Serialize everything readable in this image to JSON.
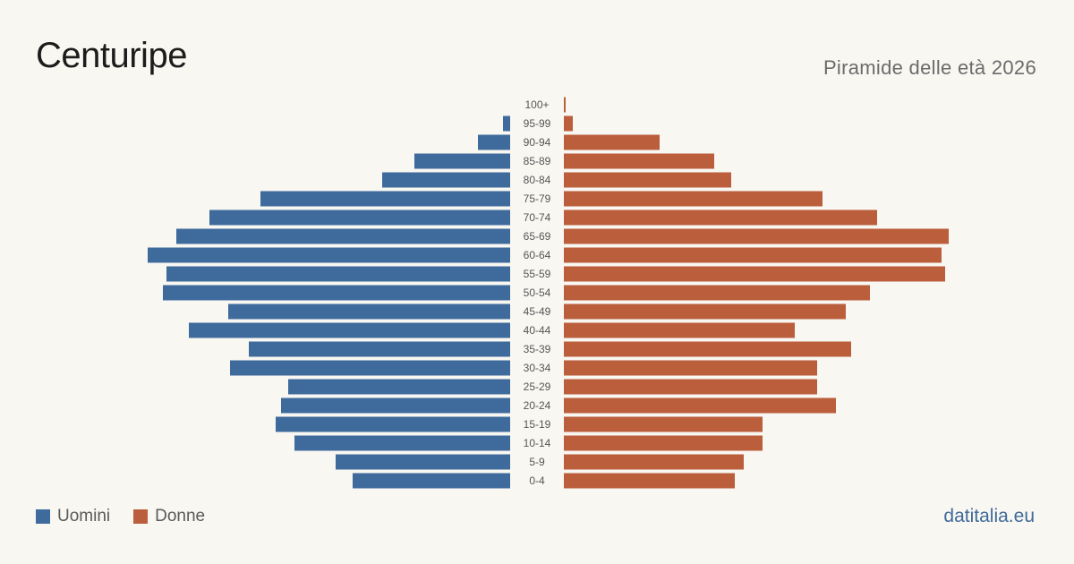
{
  "header": {
    "title": "Centuripe",
    "subtitle": "Piramide delle età 2026"
  },
  "legend": {
    "male_label": "Uomini",
    "female_label": "Donne"
  },
  "source": "datitalia.eu",
  "colors": {
    "male": "#3e6b9c",
    "female": "#bb5e3c",
    "background": "#f9f7f2"
  },
  "chart_data": {
    "type": "bar",
    "orientation": "horizontal-pyramid",
    "categories": [
      "0-4",
      "5-9",
      "10-14",
      "15-19",
      "20-24",
      "25-29",
      "30-34",
      "35-39",
      "40-44",
      "45-49",
      "50-54",
      "55-59",
      "60-64",
      "65-69",
      "70-74",
      "75-79",
      "80-84",
      "85-89",
      "90-94",
      "95-99",
      "100+"
    ],
    "series": [
      {
        "name": "Uomini",
        "side": "left",
        "values": [
          176,
          195,
          241,
          262,
          256,
          248,
          313,
          292,
          359,
          315,
          388,
          384,
          405,
          373,
          336,
          279,
          143,
          107,
          36,
          8,
          0
        ]
      },
      {
        "name": "Donne",
        "side": "right",
        "values": [
          191,
          201,
          222,
          222,
          304,
          283,
          283,
          321,
          258,
          315,
          342,
          426,
          422,
          430,
          350,
          289,
          187,
          168,
          107,
          10,
          2
        ]
      }
    ]
  }
}
